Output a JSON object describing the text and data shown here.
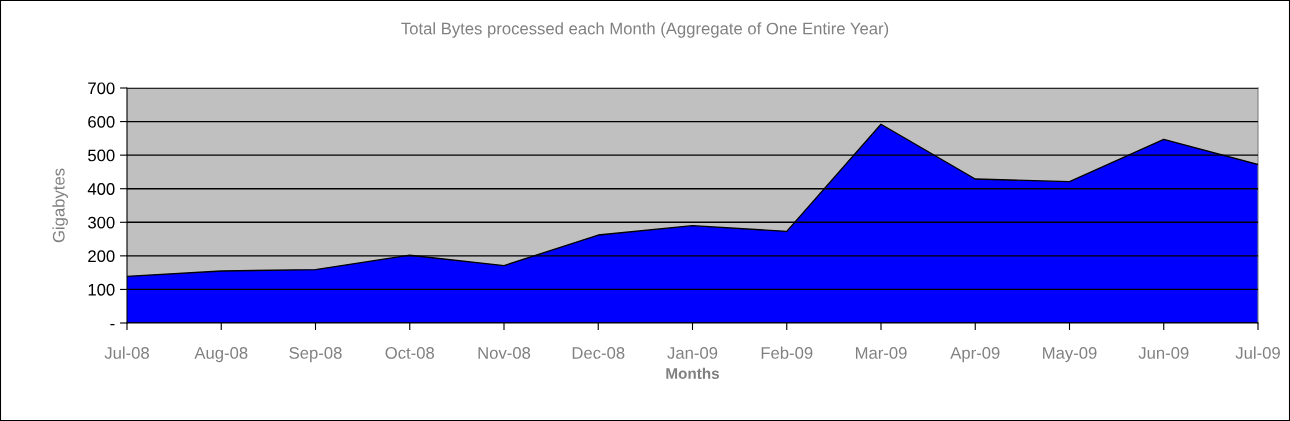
{
  "chart_data": {
    "type": "area",
    "title": "Total Bytes processed each Month (Aggregate of One Entire Year)",
    "xlabel": "Months",
    "ylabel": "Gigabytes",
    "categories": [
      "Jul-08",
      "Aug-08",
      "Sep-08",
      "Oct-08",
      "Nov-08",
      "Dec-08",
      "Jan-09",
      "Feb-09",
      "Mar-09",
      "Apr-09",
      "May-09",
      "Jun-09",
      "Jul-09"
    ],
    "series": [
      {
        "color": "#0000ff",
        "values": [
          139,
          155,
          159,
          202,
          171,
          262,
          290,
          273,
          592,
          429,
          421,
          547,
          472
        ]
      }
    ],
    "ylim": [
      0,
      700
    ],
    "yticks": [
      {
        "value": 0,
        "label": "-"
      },
      100,
      200,
      300,
      400,
      500,
      600,
      700
    ],
    "grid": "y",
    "legend": false
  }
}
